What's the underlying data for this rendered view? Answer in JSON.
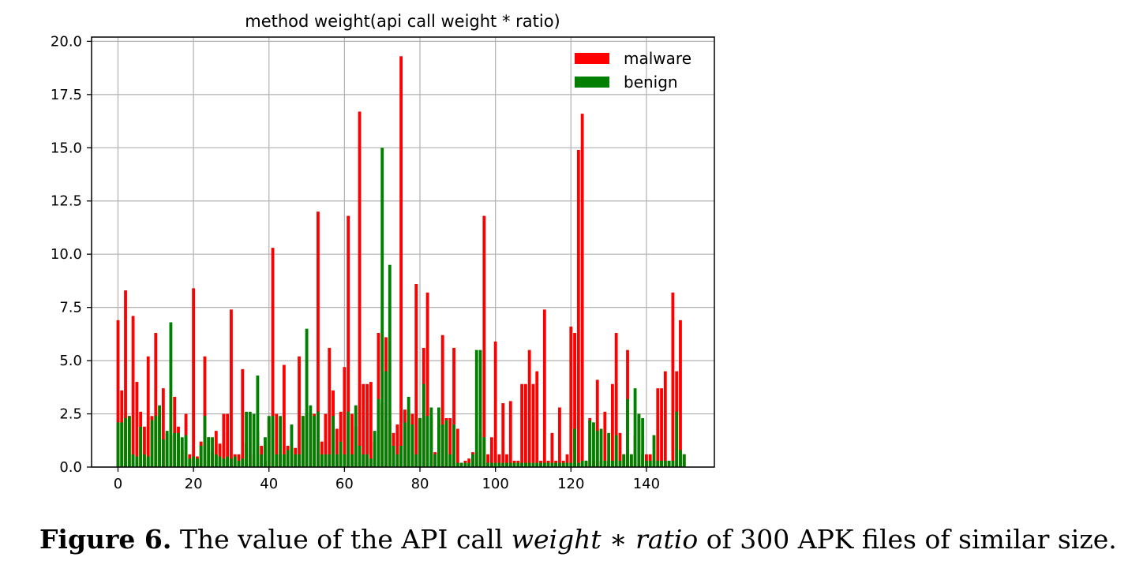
{
  "chart_data": {
    "type": "bar",
    "title": "method weight(api call weight * ratio)",
    "xlabel": "",
    "ylabel": "",
    "xlim": [
      -7,
      158
    ],
    "ylim": [
      0,
      20.2
    ],
    "grid": true,
    "legend_position": "top-right",
    "xticks": [
      0,
      20,
      40,
      60,
      80,
      100,
      120,
      140
    ],
    "yticks": [
      0,
      2.5,
      5,
      7.5,
      10,
      12.5,
      15,
      17.5,
      20
    ],
    "ytick_labels": [
      "0.0",
      "2.5",
      "5.0",
      "7.5",
      "10.0",
      "12.5",
      "15.0",
      "17.5",
      "20.0"
    ],
    "series": [
      {
        "name": "malware",
        "color": "#ff0000",
        "values": [
          6.9,
          3.6,
          8.3,
          2.4,
          7.1,
          4.0,
          2.6,
          1.9,
          5.2,
          2.4,
          6.3,
          2.4,
          3.7,
          1.6,
          1.5,
          3.3,
          1.9,
          0.8,
          2.5,
          0.6,
          8.4,
          0.5,
          1.2,
          5.2,
          1.4,
          0.7,
          1.7,
          1.1,
          2.5,
          2.5,
          7.4,
          0.6,
          0.6,
          4.6,
          1.1,
          2.5,
          0.6,
          1.7,
          1.0,
          0.3,
          2.3,
          10.3,
          2.5,
          0.6,
          4.8,
          1.0,
          0.9,
          0.9,
          5.2,
          2.4,
          2.5,
          2.5,
          2.5,
          12.0,
          1.2,
          2.5,
          5.6,
          3.6,
          1.8,
          2.6,
          4.7,
          11.8,
          2.5,
          1.9,
          16.7,
          3.9,
          3.9,
          4.0,
          1.2,
          6.3,
          3.0,
          6.1,
          2.2,
          1.6,
          2.0,
          19.3,
          2.7,
          2.7,
          2.5,
          8.6,
          2.3,
          5.6,
          8.2,
          2.3,
          0.7,
          2.3,
          6.2,
          2.3,
          2.3,
          5.6,
          1.8,
          0.2,
          0.3,
          0.4,
          0.7,
          0.7,
          1.6,
          11.8,
          0.6,
          1.4,
          5.9,
          0.6,
          3.0,
          0.6,
          3.1,
          0.3,
          0.3,
          3.9,
          3.9,
          5.5,
          3.9,
          4.5,
          0.3,
          7.4,
          0.3,
          1.6,
          0.3,
          2.8,
          0.3,
          0.6,
          6.6,
          6.3,
          14.9,
          16.6,
          0.3,
          2.3,
          0.3,
          4.1,
          0.3,
          2.6,
          0.3,
          3.9,
          6.3,
          1.6,
          0.6,
          5.5,
          0.6,
          1.5,
          2.5,
          0.6,
          0.6,
          0.6,
          0.3,
          3.7,
          3.7,
          4.5,
          0.3,
          8.2,
          4.5,
          6.9,
          0.6
        ]
      },
      {
        "name": "benign",
        "color": "#008000",
        "values": [
          2.1,
          2.1,
          2.3,
          2.4,
          0.6,
          0.5,
          1.9,
          0.6,
          0.5,
          2.2,
          2.4,
          2.9,
          1.3,
          1.7,
          6.8,
          1.6,
          1.6,
          1.4,
          1.5,
          0.4,
          0.5,
          0.4,
          1.0,
          2.4,
          1.4,
          1.4,
          0.6,
          0.5,
          0.4,
          0.5,
          0.4,
          0.5,
          0.3,
          0.4,
          2.6,
          2.6,
          2.5,
          4.3,
          0.6,
          1.4,
          2.4,
          2.4,
          0.6,
          2.4,
          0.6,
          0.8,
          2.0,
          0.6,
          0.6,
          2.4,
          6.5,
          2.9,
          2.4,
          2.6,
          0.6,
          0.6,
          0.6,
          2.4,
          0.6,
          1.2,
          0.6,
          2.6,
          0.6,
          2.9,
          1.0,
          0.6,
          0.6,
          0.4,
          1.7,
          3.2,
          15.0,
          4.5,
          9.5,
          1.0,
          0.6,
          1.0,
          2.1,
          3.3,
          2.0,
          0.6,
          2.3,
          3.9,
          2.4,
          2.8,
          0.6,
          2.8,
          2.0,
          2.2,
          0.6,
          2.0,
          0.2,
          0.2,
          0.2,
          0.2,
          0.6,
          5.5,
          5.5,
          1.4,
          0.2,
          0.2,
          0.2,
          0.2,
          0.2,
          0.2,
          0.2,
          0.2,
          0.2,
          0.2,
          0.2,
          0.2,
          0.2,
          0.2,
          0.2,
          0.2,
          0.2,
          0.2,
          0.2,
          0.2,
          0.2,
          0.2,
          0.2,
          1.8,
          0.2,
          0.3,
          0.3,
          2.2,
          2.1,
          1.7,
          1.8,
          0.3,
          1.6,
          0.3,
          1.5,
          0.3,
          0.6,
          3.2,
          0.6,
          3.7,
          2.5,
          2.3,
          0.3,
          0.3,
          1.5,
          0.3,
          0.3,
          0.3,
          0.3,
          0.3,
          2.6,
          0.8,
          0.6
        ]
      }
    ]
  },
  "caption": {
    "label": "Figure 6.",
    "text_before": " The value of the API call ",
    "formula": "weight ∗ ratio",
    "text_after": " of 300 APK files of similar size."
  }
}
